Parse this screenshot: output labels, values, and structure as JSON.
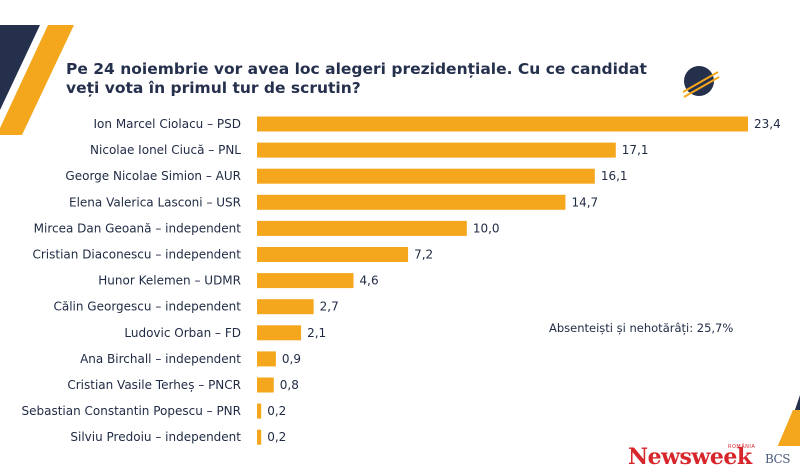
{
  "title": "Pe 24 noiembrie vor avea loc alegeri prezidențiale. Cu ce candidat veți vota în primul tur de scrutin?",
  "annotation": "Absenteiști și nehotărâți: 25,7%",
  "brand": {
    "name": "Newsweek",
    "sub": "ROMÂNIA",
    "partner": "BCS"
  },
  "colors": {
    "bar": "#f4a71d",
    "navy": "#25304d",
    "orange": "#f4a71d",
    "text": "#1f2a44",
    "brand_red": "#d7262b"
  },
  "chart_data": {
    "type": "bar",
    "orientation": "horizontal",
    "title": "Pe 24 noiembrie vor avea loc alegeri prezidențiale. Cu ce candidat veți vota în primul tur de scrutin?",
    "categories": [
      "Ion Marcel Ciolacu – PSD",
      "Nicolae Ionel Ciucă – PNL",
      "George Nicolae Simion – AUR",
      "Elena Valerica Lasconi – USR",
      "Mircea Dan Geoană – independent",
      "Cristian Diaconescu – independent",
      "Hunor Kelemen – UDMR",
      "Călin Georgescu – independent",
      "Ludovic Orban – FD",
      "Ana Birchall – independent",
      "Cristian Vasile Terheș – PNCR",
      "Sebastian Constantin Popescu – PNR",
      "Silviu Predoiu – independent"
    ],
    "values": [
      23.4,
      17.1,
      16.1,
      14.7,
      10.0,
      7.2,
      4.6,
      2.7,
      2.1,
      0.9,
      0.8,
      0.2,
      0.2
    ],
    "value_labels": [
      "23,4",
      "17,1",
      "16,1",
      "14,7",
      "10,0",
      "7,2",
      "4,6",
      "2,7",
      "2,1",
      "0,9",
      "0,8",
      "0,2",
      "0,2"
    ],
    "xlim": [
      0,
      23.4
    ],
    "grid": false,
    "legend": "none",
    "annotation": "Absenteiști și nehotărâți: 25,7%"
  }
}
